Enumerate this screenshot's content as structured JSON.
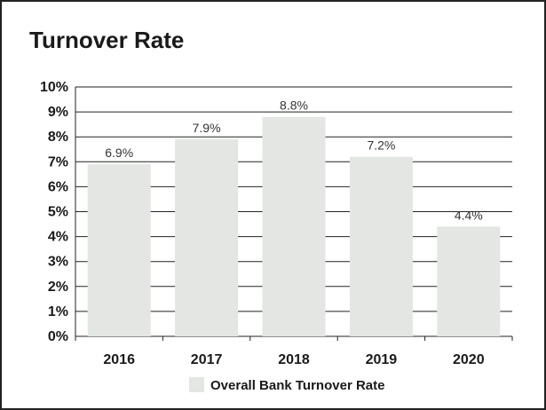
{
  "chart_data": {
    "type": "bar",
    "title": "Turnover Rate",
    "categories": [
      "2016",
      "2017",
      "2018",
      "2019",
      "2020"
    ],
    "series": [
      {
        "name": "Overall Bank Turnover Rate",
        "values": [
          6.9,
          7.9,
          8.8,
          7.2,
          4.4
        ],
        "labels": [
          "6.9%",
          "7.9%",
          "8.8%",
          "7.2%",
          "4.4%"
        ]
      }
    ],
    "y_ticks": [
      "0%",
      "1%",
      "2%",
      "3%",
      "4%",
      "5%",
      "6%",
      "7%",
      "8%",
      "9%",
      "10%"
    ],
    "ylim": [
      0,
      10
    ],
    "grid": true,
    "legend_position": "bottom",
    "colors": {
      "bar": "#e3e6e3",
      "grid": "#222222",
      "text": "#1a1a1a"
    }
  }
}
